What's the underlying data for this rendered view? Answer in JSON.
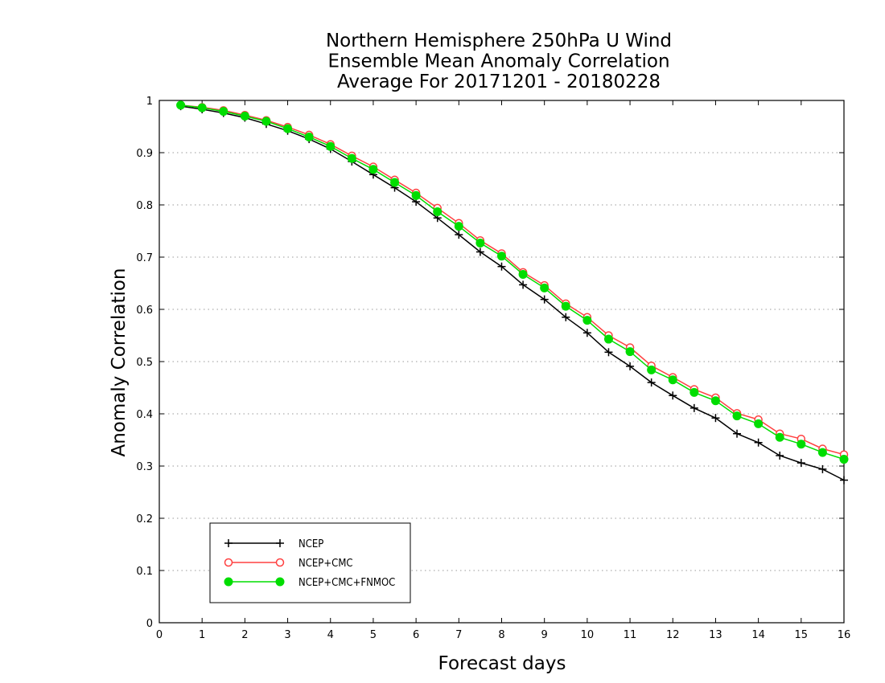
{
  "chart_data": {
    "type": "line",
    "title_lines": [
      "Northern Hemisphere 250hPa U Wind",
      "Ensemble Mean Anomaly Correlation",
      "Average For 20171201 - 20180228"
    ],
    "xlabel": "Forecast days",
    "ylabel": "Anomaly Correlation",
    "xlim": [
      0,
      16
    ],
    "ylim": [
      0,
      1
    ],
    "xticks": [
      "0",
      "1",
      "2",
      "3",
      "4",
      "5",
      "6",
      "7",
      "8",
      "9",
      "10",
      "11",
      "12",
      "13",
      "14",
      "15",
      "16"
    ],
    "yticks": [
      "0",
      "0.1",
      "0.2",
      "0.3",
      "0.4",
      "0.5",
      "0.6",
      "0.7",
      "0.8",
      "0.9",
      "1"
    ],
    "grid": "horizontal-dotted",
    "legend_position": "bottom-left",
    "x": [
      0.5,
      1,
      1.5,
      2,
      2.5,
      3,
      3.5,
      4,
      4.5,
      5,
      5.5,
      6,
      6.5,
      7,
      7.5,
      8,
      8.5,
      9,
      9.5,
      10,
      10.5,
      11,
      11.5,
      12,
      12.5,
      13,
      13.5,
      14,
      14.5,
      15,
      15.5,
      16
    ],
    "series": [
      {
        "name": "NCEP",
        "color": "#000000",
        "marker": "plus",
        "values": [
          0.989,
          0.983,
          0.976,
          0.967,
          0.955,
          0.942,
          0.926,
          0.907,
          0.883,
          0.858,
          0.833,
          0.806,
          0.775,
          0.743,
          0.71,
          0.682,
          0.647,
          0.619,
          0.585,
          0.555,
          0.518,
          0.491,
          0.46,
          0.435,
          0.411,
          0.392,
          0.362,
          0.345,
          0.32,
          0.306,
          0.294,
          0.273
        ]
      },
      {
        "name": "NCEP+CMC",
        "color": "#ff4040",
        "marker": "open-circle",
        "values": [
          0.991,
          0.987,
          0.981,
          0.972,
          0.962,
          0.949,
          0.934,
          0.916,
          0.894,
          0.873,
          0.848,
          0.823,
          0.794,
          0.765,
          0.732,
          0.707,
          0.671,
          0.646,
          0.611,
          0.585,
          0.55,
          0.527,
          0.492,
          0.47,
          0.447,
          0.431,
          0.401,
          0.389,
          0.362,
          0.352,
          0.333,
          0.322
        ]
      },
      {
        "name": "NCEP+CMC+FNMOC",
        "color": "#00dd00",
        "marker": "filled-circle",
        "values": [
          0.991,
          0.986,
          0.979,
          0.97,
          0.96,
          0.946,
          0.93,
          0.912,
          0.889,
          0.868,
          0.843,
          0.818,
          0.787,
          0.759,
          0.727,
          0.702,
          0.667,
          0.641,
          0.606,
          0.579,
          0.543,
          0.519,
          0.484,
          0.465,
          0.441,
          0.425,
          0.396,
          0.381,
          0.355,
          0.342,
          0.326,
          0.313
        ]
      }
    ]
  }
}
